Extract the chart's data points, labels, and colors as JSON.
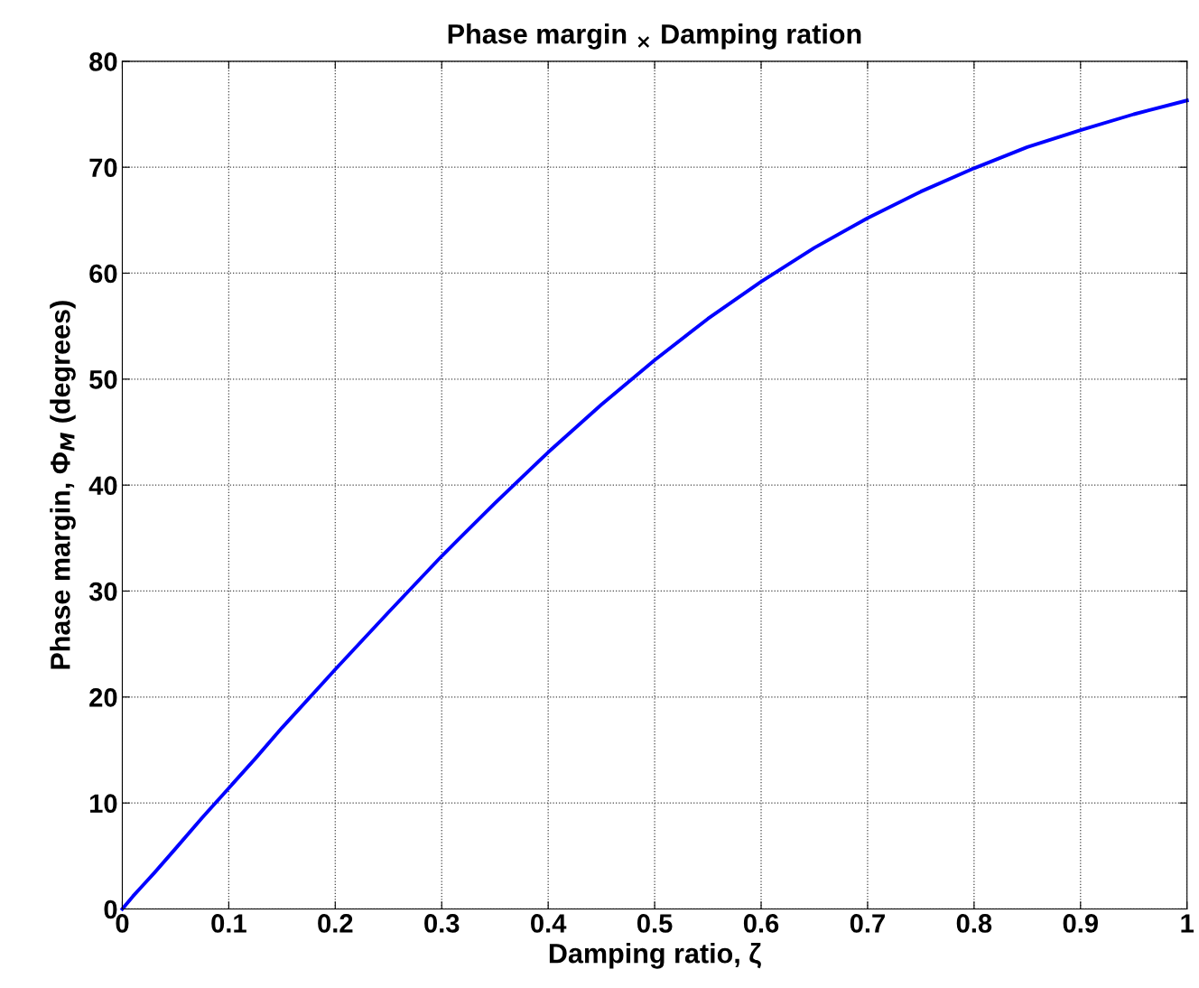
{
  "chart_data": {
    "type": "line",
    "title": "Phase margin $_{×}$ Damping ration",
    "xlabel": "Damping ratio, ζ",
    "ylabel": "Phase margin, Φ$_{M}$ (degrees)",
    "x": [
      0,
      0.01,
      0.02,
      0.03,
      0.05,
      0.075,
      0.1,
      0.125,
      0.15,
      0.2,
      0.25,
      0.3,
      0.35,
      0.4,
      0.45,
      0.5,
      0.55,
      0.6,
      0.65,
      0.7,
      0.75,
      0.8,
      0.85,
      0.9,
      0.95,
      1.0
    ],
    "series": [
      {
        "color": "#0000ff",
        "values": [
          0,
          1.2,
          2.3,
          3.4,
          5.7,
          8.6,
          11.4,
          14.2,
          17.1,
          22.6,
          28.0,
          33.3,
          38.3,
          43.1,
          47.6,
          51.8,
          55.7,
          59.2,
          62.4,
          65.2,
          67.7,
          69.9,
          71.9,
          73.5,
          75.0,
          76.3
        ]
      }
    ],
    "xlim": [
      0,
      1
    ],
    "ylim": [
      0,
      80
    ],
    "xticks": [
      0,
      0.1,
      0.2,
      0.3,
      0.4,
      0.5,
      0.6,
      0.7,
      0.8,
      0.9,
      1
    ],
    "yticks": [
      0,
      10,
      20,
      30,
      40,
      50,
      60,
      70,
      80
    ],
    "grid": true,
    "line_style": "solid",
    "marker": "none"
  }
}
